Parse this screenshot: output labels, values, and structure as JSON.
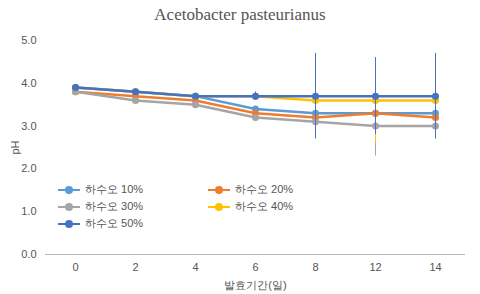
{
  "chart_data": {
    "type": "line",
    "title": "Acetobacter pasteurianus",
    "x_label": "발효기간(일)",
    "y_label": "pH",
    "categories": [
      "0",
      "2",
      "4",
      "6",
      "8",
      "12",
      "14"
    ],
    "ylim": [
      0,
      5
    ],
    "yticks": [
      0,
      1,
      2,
      3,
      4,
      5
    ],
    "grid": false,
    "legend": "lower left",
    "marker": "circle",
    "series": [
      {
        "name": "하수오 10%",
        "color": "#5B9BD5",
        "values": [
          3.9,
          3.8,
          3.7,
          3.4,
          3.3,
          3.3,
          3.3
        ],
        "errors": [
          0,
          0,
          0,
          0.05,
          0.1,
          0.3,
          0.1
        ]
      },
      {
        "name": "하수오 20%",
        "color": "#ED7D31",
        "values": [
          3.8,
          3.7,
          3.6,
          3.3,
          3.2,
          3.3,
          3.2
        ],
        "errors": [
          0,
          0,
          0,
          0.05,
          0.1,
          0.9,
          0.1
        ]
      },
      {
        "name": "하수오 30%",
        "color": "#A5A5A5",
        "values": [
          3.8,
          3.6,
          3.5,
          3.2,
          3.1,
          3.0,
          3.0
        ],
        "errors": [
          0,
          0.05,
          0,
          0.05,
          0.1,
          0.7,
          0.3
        ]
      },
      {
        "name": "하수오 40%",
        "color": "#FFC000",
        "values": [
          3.9,
          3.8,
          3.7,
          3.7,
          3.6,
          3.6,
          3.6
        ],
        "errors": [
          0,
          0,
          0,
          0.05,
          0.1,
          1.0,
          0.1
        ]
      },
      {
        "name": "하수오 50%",
        "color": "#4472C4",
        "values": [
          3.9,
          3.8,
          3.7,
          3.7,
          3.7,
          3.7,
          3.7
        ],
        "errors": [
          0.02,
          0.02,
          0.02,
          0.1,
          1.0,
          0.9,
          1.0
        ]
      }
    ]
  }
}
